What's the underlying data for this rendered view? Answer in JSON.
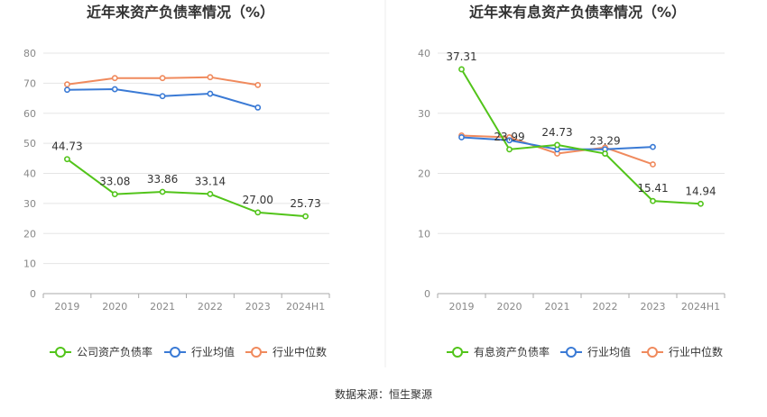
{
  "footer": {
    "source": "数据来源：恒生聚源"
  },
  "colors": {
    "green": "#52c41a",
    "blue": "#3a7ad5",
    "orange": "#f08a5d",
    "grid": "#e5e5e5",
    "axis": "#888888",
    "text": "#333333",
    "divider": "#eeeeee"
  },
  "chart_data": [
    {
      "type": "line",
      "title": "近年来资产负债率情况（%）",
      "categories": [
        "2019",
        "2020",
        "2021",
        "2022",
        "2023",
        "2024H1"
      ],
      "yticks": [
        "0",
        "10",
        "20",
        "30",
        "40",
        "50",
        "60",
        "70",
        "80"
      ],
      "ylim": [
        0,
        80
      ],
      "series": [
        {
          "name": "公司资产负债率",
          "color": "#52c41a",
          "values": [
            44.73,
            33.08,
            33.86,
            33.14,
            27.0,
            25.73
          ],
          "labels": [
            "44.73",
            "33.08",
            "33.86",
            "33.14",
            "27.00",
            "25.73"
          ]
        },
        {
          "name": "行业均值",
          "color": "#3a7ad5",
          "values": [
            67.8,
            68.0,
            65.7,
            66.5,
            61.9,
            null
          ],
          "labels": []
        },
        {
          "name": "行业中位数",
          "color": "#f08a5d",
          "values": [
            69.6,
            71.7,
            71.7,
            72.0,
            69.4,
            null
          ],
          "labels": []
        }
      ]
    },
    {
      "type": "line",
      "title": "近年来有息资产负债率情况（%）",
      "categories": [
        "2019",
        "2020",
        "2021",
        "2022",
        "2023",
        "2024H1"
      ],
      "yticks": [
        "0",
        "10",
        "20",
        "30",
        "40"
      ],
      "ylim": [
        0,
        40
      ],
      "series": [
        {
          "name": "有息资产负债率",
          "color": "#52c41a",
          "values": [
            37.31,
            23.99,
            24.73,
            23.29,
            15.41,
            14.94
          ],
          "labels": [
            "37.31",
            "23.99",
            "24.73",
            "23.29",
            "15.41",
            "14.94"
          ]
        },
        {
          "name": "行业均值",
          "color": "#3a7ad5",
          "values": [
            26.0,
            25.5,
            24.0,
            24.0,
            24.4,
            null
          ],
          "labels": []
        },
        {
          "name": "行业中位数",
          "color": "#f08a5d",
          "values": [
            26.3,
            26.0,
            23.3,
            24.3,
            21.5,
            null
          ],
          "labels": []
        }
      ]
    }
  ]
}
